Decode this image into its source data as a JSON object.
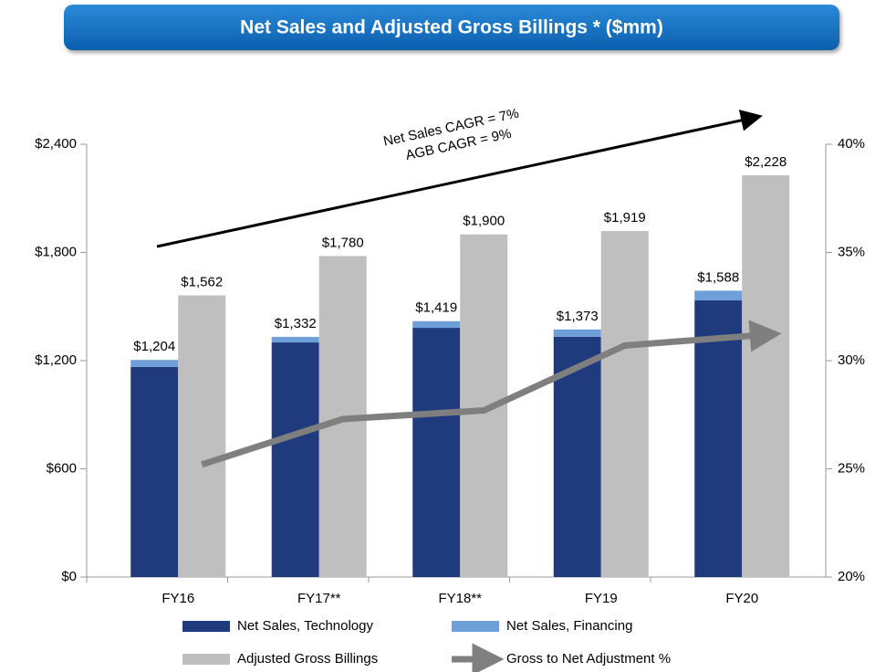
{
  "chart_data": {
    "type": "bar",
    "title": "Net Sales and Adjusted Gross Billings * ($mm)",
    "categories": [
      "FY16",
      "FY17**",
      "FY18**",
      "FY19",
      "FY20"
    ],
    "series": [
      {
        "name": "Net Sales, Technology",
        "color": "#1f3a7d",
        "stack": "net",
        "values": [
          1165,
          1301,
          1382,
          1332,
          1534
        ]
      },
      {
        "name": "Net Sales, Financing",
        "color": "#6f9fd8",
        "stack": "net",
        "values": [
          39,
          31,
          37,
          41,
          54
        ]
      },
      {
        "name": "Adjusted Gross Billings",
        "color": "#bfbfbf",
        "stack": "agb",
        "values": [
          1562,
          1780,
          1900,
          1919,
          2228
        ],
        "value_labels": [
          "$1,562",
          "$1,780",
          "$1,900",
          "$1,919",
          "$2,228"
        ]
      },
      {
        "name": "Gross to Net Adjustment %",
        "color": "#7f7f7f",
        "type": "line",
        "axis": "y2",
        "values": [
          25.2,
          27.3,
          27.7,
          30.7,
          31.2
        ]
      }
    ],
    "totals": {
      "values": [
        1204,
        1332,
        1419,
        1373,
        1588
      ],
      "value_labels": [
        "$1,204",
        "$1,332",
        "$1,419",
        "$1,373",
        "$1,588"
      ]
    },
    "annotations": [
      "Net Sales CAGR = 7%",
      "AGB CAGR = 9%"
    ],
    "ylim": [
      0,
      2400
    ],
    "yticks": [
      {
        "value": 0,
        "label": "$0"
      },
      {
        "value": 600,
        "label": "$600"
      },
      {
        "value": 1200,
        "label": "$1,200"
      },
      {
        "value": 1800,
        "label": "$1,800"
      },
      {
        "value": 2400,
        "label": "$2,400"
      }
    ],
    "y2lim": [
      20,
      40
    ],
    "y2ticks": [
      {
        "value": 20,
        "label": "20%"
      },
      {
        "value": 25,
        "label": "25%"
      },
      {
        "value": 30,
        "label": "30%"
      },
      {
        "value": 35,
        "label": "35%"
      },
      {
        "value": 40,
        "label": "40%"
      }
    ]
  }
}
